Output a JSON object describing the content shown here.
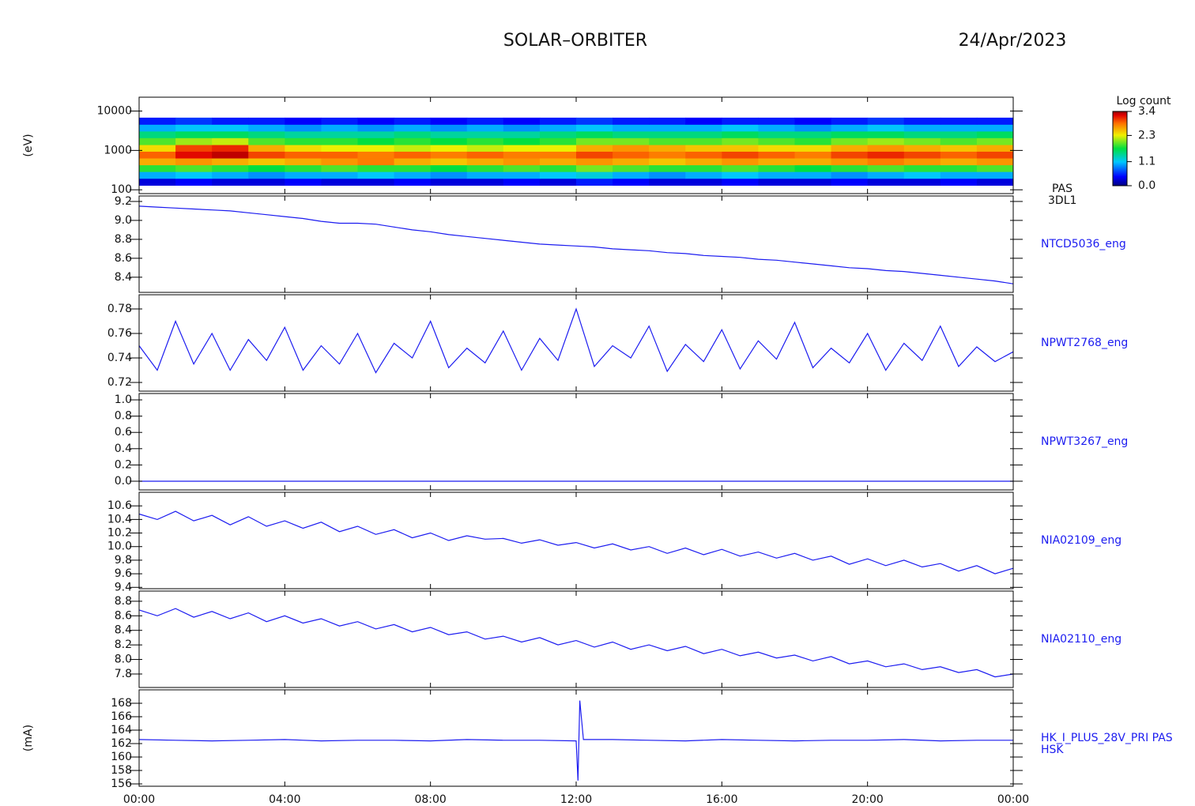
{
  "header": {
    "title": "SOLAR–ORBITER",
    "date": "24/Apr/2023"
  },
  "chart_data": [
    {
      "type": "heatmap",
      "name": "PAS",
      "instrument": "3DL1",
      "ylabel": "(eV)",
      "log": true,
      "ylim": [
        80,
        22500
      ],
      "yticks": [
        100,
        1000,
        10000
      ],
      "x": [
        0,
        1,
        2,
        3,
        4,
        5,
        6,
        7,
        8,
        9,
        10,
        11,
        12,
        13,
        14,
        15,
        16,
        17,
        18,
        19,
        20,
        21,
        22,
        23,
        24
      ],
      "y": [
        130,
        195,
        290,
        430,
        640,
        950,
        1400,
        2100,
        3100,
        4600,
        6800
      ],
      "z": [
        [
          0.3,
          0.4,
          0.3,
          0.3,
          0.4,
          0.3,
          0.3,
          0.4,
          0.3,
          0.3,
          0.4,
          0.3,
          0.5,
          0.4,
          0.3,
          0.3,
          0.4,
          0.3,
          0.3,
          0.4,
          0.3,
          0.3,
          0.4,
          0.3
        ],
        [
          1.0,
          1.1,
          1.0,
          0.9,
          1.0,
          1.0,
          1.1,
          1.0,
          0.9,
          1.0,
          1.0,
          1.1,
          1.2,
          1.0,
          0.9,
          1.0,
          1.1,
          1.0,
          1.0,
          0.9,
          1.0,
          1.1,
          1.0,
          1.0
        ],
        [
          1.8,
          1.9,
          1.8,
          1.7,
          1.8,
          1.9,
          1.8,
          1.8,
          1.7,
          1.8,
          1.9,
          1.8,
          2.0,
          1.9,
          1.8,
          1.8,
          1.9,
          1.8,
          1.7,
          1.8,
          1.9,
          1.8,
          1.8,
          1.9
        ],
        [
          2.6,
          2.7,
          2.6,
          2.5,
          2.6,
          2.7,
          2.8,
          2.6,
          2.5,
          2.6,
          2.7,
          2.6,
          2.7,
          2.6,
          2.5,
          2.6,
          2.7,
          2.6,
          2.6,
          2.7,
          2.8,
          2.7,
          2.6,
          2.7
        ],
        [
          2.9,
          3.2,
          3.3,
          3.0,
          2.9,
          2.9,
          2.8,
          2.9,
          2.8,
          2.9,
          2.8,
          2.8,
          3.0,
          2.9,
          2.8,
          2.9,
          3.0,
          2.9,
          2.8,
          3.0,
          3.1,
          3.0,
          2.9,
          3.0
        ],
        [
          2.4,
          3.0,
          3.1,
          2.6,
          2.4,
          2.3,
          2.3,
          2.2,
          2.3,
          2.2,
          2.3,
          2.3,
          2.6,
          2.7,
          2.6,
          2.5,
          2.5,
          2.4,
          2.4,
          2.6,
          2.7,
          2.6,
          2.5,
          2.6
        ],
        [
          1.9,
          2.1,
          2.2,
          1.9,
          1.8,
          1.8,
          1.7,
          1.8,
          1.7,
          1.8,
          1.7,
          1.8,
          2.0,
          2.0,
          1.9,
          1.9,
          2.0,
          1.9,
          1.8,
          2.0,
          2.1,
          2.0,
          1.9,
          2.0
        ],
        [
          1.5,
          1.6,
          1.6,
          1.5,
          1.4,
          1.4,
          1.4,
          1.5,
          1.4,
          1.4,
          1.4,
          1.5,
          1.6,
          1.5,
          1.5,
          1.5,
          1.6,
          1.5,
          1.5,
          1.6,
          1.6,
          1.5,
          1.5,
          1.6
        ],
        [
          1.0,
          1.1,
          1.1,
          1.0,
          0.9,
          1.0,
          0.9,
          1.0,
          0.9,
          1.0,
          0.9,
          1.0,
          1.1,
          1.0,
          1.0,
          1.0,
          1.1,
          1.0,
          0.9,
          1.0,
          1.1,
          1.0,
          1.0,
          1.0
        ],
        [
          0.5,
          0.6,
          0.5,
          0.5,
          0.4,
          0.5,
          0.4,
          0.5,
          0.4,
          0.5,
          0.4,
          0.5,
          0.6,
          0.5,
          0.5,
          0.4,
          0.5,
          0.5,
          0.4,
          0.5,
          0.6,
          0.5,
          0.5,
          0.5
        ]
      ],
      "colorbar": {
        "title": "Log count",
        "zlim": [
          0,
          3.4
        ],
        "ticks": [
          {
            "value": 0,
            "label": "0.0"
          },
          1.1,
          2.3,
          3.4
        ]
      }
    },
    {
      "type": "line",
      "ylim": [
        8.24,
        9.258
      ],
      "yticks": [
        9.2,
        {
          "value": 9.0,
          "label": "9.0"
        },
        8.8,
        8.6,
        8.4
      ],
      "x": [
        0,
        0.5,
        1,
        1.5,
        2,
        2.5,
        3,
        3.5,
        4,
        4.5,
        5,
        5.5,
        6,
        6.5,
        7,
        7.5,
        8,
        8.5,
        9,
        9.5,
        10,
        10.5,
        11,
        11.5,
        12,
        12.5,
        13,
        13.5,
        14,
        14.5,
        15,
        15.5,
        16,
        16.5,
        17,
        17.5,
        18,
        18.5,
        19,
        19.5,
        20,
        20.5,
        21,
        21.5,
        22,
        22.5,
        23,
        23.5,
        24
      ],
      "series": [
        {
          "name": "NTCD5036_eng",
          "color": "#1c1cf0",
          "values": [
            9.15,
            9.14,
            9.13,
            9.12,
            9.11,
            9.1,
            9.08,
            9.06,
            9.04,
            9.02,
            8.99,
            8.97,
            8.97,
            8.96,
            8.93,
            8.9,
            8.88,
            8.85,
            8.83,
            8.81,
            8.79,
            8.77,
            8.75,
            8.74,
            8.73,
            8.72,
            8.7,
            8.69,
            8.68,
            8.66,
            8.65,
            8.63,
            8.62,
            8.61,
            8.59,
            8.58,
            8.56,
            8.54,
            8.52,
            8.5,
            8.49,
            8.47,
            8.46,
            8.44,
            8.42,
            8.4,
            8.38,
            8.36,
            8.33
          ]
        }
      ]
    },
    {
      "type": "line",
      "ylim": [
        0.7129,
        0.7916
      ],
      "yticks": [
        0.78,
        0.76,
        0.74,
        0.72
      ],
      "x": [
        0,
        0.5,
        1,
        1.5,
        2,
        2.5,
        3,
        3.5,
        4,
        4.5,
        5,
        5.5,
        6,
        6.5,
        7,
        7.5,
        8,
        8.5,
        9,
        9.5,
        10,
        10.5,
        11,
        11.5,
        12,
        12.5,
        13,
        13.5,
        14,
        14.5,
        15,
        15.5,
        16,
        16.5,
        17,
        17.5,
        18,
        18.5,
        19,
        19.5,
        20,
        20.5,
        21,
        21.5,
        22,
        22.5,
        23,
        23.5,
        24
      ],
      "series": [
        {
          "name": "NPWT2768_eng",
          "color": "#1c1cf0",
          "values": [
            0.75,
            0.73,
            0.77,
            0.735,
            0.76,
            0.73,
            0.755,
            0.738,
            0.765,
            0.73,
            0.75,
            0.735,
            0.76,
            0.728,
            0.752,
            0.74,
            0.77,
            0.732,
            0.748,
            0.736,
            0.762,
            0.73,
            0.756,
            0.738,
            0.78,
            0.733,
            0.75,
            0.74,
            0.766,
            0.729,
            0.751,
            0.737,
            0.763,
            0.731,
            0.754,
            0.739,
            0.769,
            0.732,
            0.748,
            0.736,
            0.76,
            0.73,
            0.752,
            0.738,
            0.766,
            0.733,
            0.749,
            0.737,
            0.745
          ]
        }
      ]
    },
    {
      "type": "line",
      "ylim": [
        -0.107,
        1.078
      ],
      "yticks": [
        {
          "value": 1.0,
          "label": "1.0"
        },
        0.8,
        0.6,
        0.4,
        0.2,
        {
          "value": 0,
          "label": "0.0"
        }
      ],
      "x": [
        0,
        24
      ],
      "series": [
        {
          "name": "NPWT3267_eng",
          "color": "#1c1cf0",
          "values": [
            0,
            0
          ]
        }
      ]
    },
    {
      "type": "line",
      "ylim": [
        9.38,
        10.8
      ],
      "yticks": [
        10.6,
        10.4,
        10.2,
        {
          "value": 10.0,
          "label": "10.0"
        },
        9.8,
        9.6,
        9.4
      ],
      "x": [
        0,
        0.5,
        1,
        1.5,
        2,
        2.5,
        3,
        3.5,
        4,
        4.5,
        5,
        5.5,
        6,
        6.5,
        7,
        7.5,
        8,
        8.5,
        9,
        9.5,
        10,
        10.5,
        11,
        11.5,
        12,
        12.5,
        13,
        13.5,
        14,
        14.5,
        15,
        15.5,
        16,
        16.5,
        17,
        17.5,
        18,
        18.5,
        19,
        19.5,
        20,
        20.5,
        21,
        21.5,
        22,
        22.5,
        23,
        23.5,
        24
      ],
      "series": [
        {
          "name": "NIA02109_eng",
          "color": "#1c1cf0",
          "values": [
            10.48,
            10.4,
            10.52,
            10.38,
            10.46,
            10.32,
            10.44,
            10.3,
            10.38,
            10.27,
            10.36,
            10.22,
            10.3,
            10.18,
            10.25,
            10.13,
            10.2,
            10.09,
            10.16,
            10.11,
            10.12,
            10.05,
            10.1,
            10.02,
            10.06,
            9.98,
            10.04,
            9.95,
            10.0,
            9.9,
            9.98,
            9.88,
            9.96,
            9.86,
            9.92,
            9.83,
            9.9,
            9.8,
            9.86,
            9.74,
            9.82,
            9.72,
            9.8,
            9.7,
            9.75,
            9.64,
            9.72,
            9.6,
            9.68
          ]
        }
      ]
    },
    {
      "type": "line",
      "ylim": [
        7.615,
        8.94
      ],
      "yticks": [
        8.8,
        8.6,
        8.4,
        8.2,
        {
          "value": 8.0,
          "label": "8.0"
        },
        7.8
      ],
      "x": [
        0,
        0.5,
        1,
        1.5,
        2,
        2.5,
        3,
        3.5,
        4,
        4.5,
        5,
        5.5,
        6,
        6.5,
        7,
        7.5,
        8,
        8.5,
        9,
        9.5,
        10,
        10.5,
        11,
        11.5,
        12,
        12.5,
        13,
        13.5,
        14,
        14.5,
        15,
        15.5,
        16,
        16.5,
        17,
        17.5,
        18,
        18.5,
        19,
        19.5,
        20,
        20.5,
        21,
        21.5,
        22,
        22.5,
        23,
        23.5,
        24
      ],
      "series": [
        {
          "name": "NIA02110_eng",
          "color": "#1c1cf0",
          "values": [
            8.68,
            8.6,
            8.7,
            8.58,
            8.66,
            8.56,
            8.64,
            8.52,
            8.6,
            8.5,
            8.56,
            8.46,
            8.52,
            8.42,
            8.48,
            8.38,
            8.44,
            8.34,
            8.38,
            8.28,
            8.32,
            8.24,
            8.3,
            8.2,
            8.26,
            8.17,
            8.24,
            8.14,
            8.2,
            8.12,
            8.18,
            8.08,
            8.14,
            8.05,
            8.1,
            8.02,
            8.06,
            7.98,
            8.04,
            7.94,
            7.98,
            7.9,
            7.94,
            7.86,
            7.9,
            7.82,
            7.86,
            7.76,
            7.8
          ]
        }
      ]
    },
    {
      "type": "line",
      "instrument": "HSK",
      "ylabel": "(mA)",
      "ylim": [
        155.65,
        170
      ],
      "yticks": [
        168,
        166,
        164,
        162,
        160,
        158,
        156
      ],
      "xlim": [
        0,
        24
      ],
      "xticks": [
        {
          "value": 0,
          "label": "00:00"
        },
        {
          "value": 4,
          "label": "04:00"
        },
        {
          "value": 8,
          "label": "08:00"
        },
        {
          "value": 12,
          "label": "12:00"
        },
        {
          "value": 16,
          "label": "16:00"
        },
        {
          "value": 20,
          "label": "20:00"
        },
        {
          "value": 24,
          "label": "00:00"
        }
      ],
      "x": [
        0,
        1,
        2,
        3,
        4,
        5,
        6,
        7,
        8,
        9,
        10,
        11,
        12,
        12.05,
        12.1,
        12.2,
        13,
        14,
        15,
        16,
        17,
        18,
        19,
        20,
        21,
        22,
        23,
        24
      ],
      "series": [
        {
          "name": "HK_I_PLUS_28V_PRI PAS",
          "color": "#1c1cf0",
          "values": [
            162.6,
            162.5,
            162.4,
            162.5,
            162.6,
            162.4,
            162.5,
            162.5,
            162.4,
            162.6,
            162.5,
            162.5,
            162.4,
            156.5,
            168.4,
            162.6,
            162.6,
            162.5,
            162.4,
            162.6,
            162.5,
            162.4,
            162.5,
            162.5,
            162.6,
            162.4,
            162.5,
            162.5
          ]
        }
      ]
    }
  ]
}
